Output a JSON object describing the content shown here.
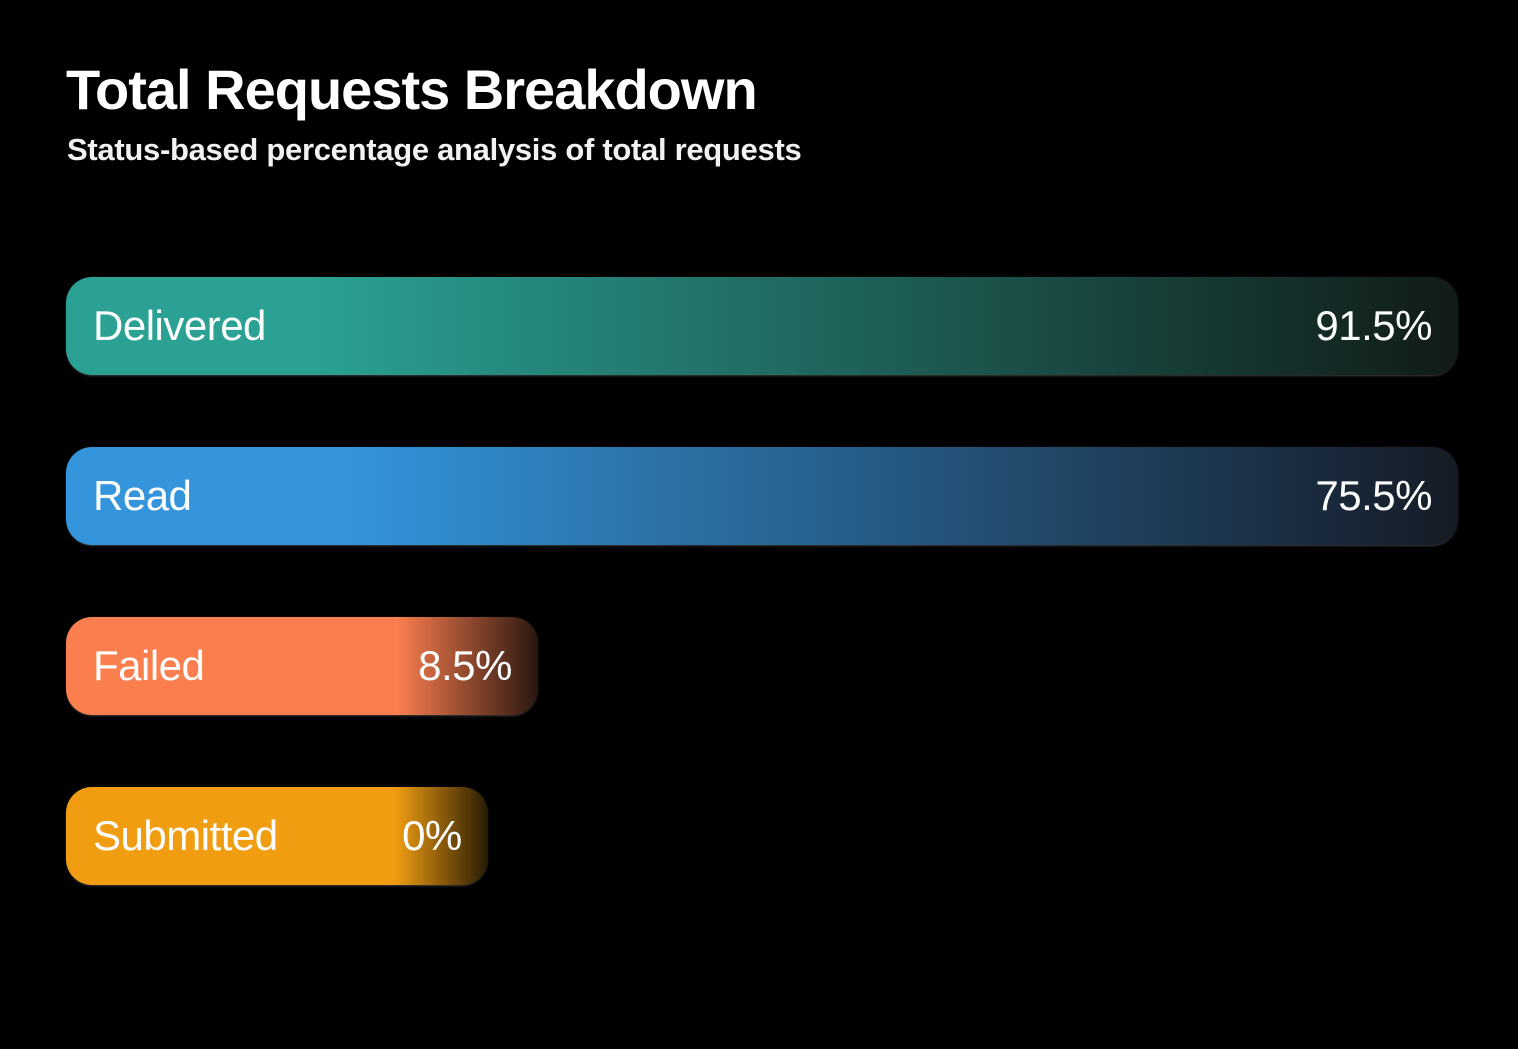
{
  "page": {
    "background_color": "#000000",
    "text_color": "#ffffff"
  },
  "header": {
    "title": "Total Requests Breakdown",
    "subtitle": "Status-based percentage analysis of total requests"
  },
  "chart_data": {
    "type": "bar",
    "orientation": "horizontal",
    "title": "Total Requests Breakdown",
    "subtitle": "Status-based percentage analysis of total requests",
    "categories": [
      "Delivered",
      "Read",
      "Failed",
      "Submitted"
    ],
    "values": [
      91.5,
      75.5,
      8.5,
      0
    ],
    "value_labels": [
      "91.5%",
      "75.5%",
      "8.5%",
      "0%"
    ],
    "xlim": [
      0,
      100
    ],
    "grid": false,
    "legend": false,
    "bars": [
      {
        "label": "Delivered",
        "value": 91.5,
        "display_value": "91.5%",
        "color": "#2AA193",
        "fade_color": "#111B18",
        "width_pct": 100,
        "fade_start_pct": 18
      },
      {
        "label": "Read",
        "value": 75.5,
        "display_value": "75.5%",
        "color": "#3495DC",
        "fade_color": "#161B26",
        "width_pct": 100,
        "fade_start_pct": 20
      },
      {
        "label": "Failed",
        "value": 8.5,
        "display_value": "8.5%",
        "color": "#FB7E4E",
        "fade_color": "#2A1711",
        "width_pct": 33.9,
        "fade_start_pct": 70
      },
      {
        "label": "Submitted",
        "value": 0,
        "display_value": "0%",
        "color": "#F09D12",
        "fade_color": "#271B04",
        "width_pct": 30.3,
        "fade_start_pct": 78
      }
    ]
  }
}
